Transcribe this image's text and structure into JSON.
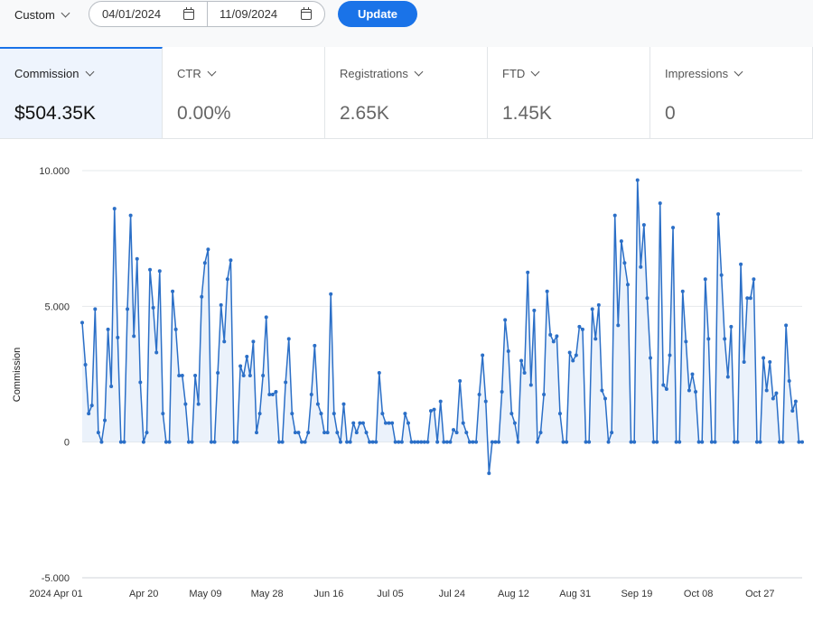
{
  "date_range": {
    "preset": "Custom",
    "start": "04/01/2024",
    "end": "11/09/2024",
    "start_icon": "calendar-icon",
    "end_icon": "calendar-icon"
  },
  "update_label": "Update",
  "metrics": [
    {
      "label": "Commission",
      "value": "$504.35K",
      "active": true
    },
    {
      "label": "CTR",
      "value": "0.00%",
      "active": false
    },
    {
      "label": "Registrations",
      "value": "2.65K",
      "active": false
    },
    {
      "label": "FTD",
      "value": "1.45K",
      "active": false
    },
    {
      "label": "Impressions",
      "value": "0",
      "active": false
    }
  ],
  "colors": {
    "accent": "#1a73e8",
    "line": "#2b6fc7",
    "area": "#dbe8f7"
  },
  "chart_data": {
    "type": "area",
    "ylabel": "Commission",
    "xlabel": "",
    "ylim": [
      -5,
      10
    ],
    "yticks": [
      10,
      5,
      0,
      -5
    ],
    "ytick_labels": [
      "10.000",
      "5.000",
      "0",
      "-5.000"
    ],
    "x_start": "2024-04-01",
    "x_end": "2024-11-09",
    "xtick_labels": [
      {
        "label": "2024 Apr 01",
        "date": "2024-04-01"
      },
      {
        "label": "Apr 20",
        "date": "2024-04-20"
      },
      {
        "label": "May 09",
        "date": "2024-05-09"
      },
      {
        "label": "May 28",
        "date": "2024-05-28"
      },
      {
        "label": "Jun 16",
        "date": "2024-06-16"
      },
      {
        "label": "Jul 05",
        "date": "2024-07-05"
      },
      {
        "label": "Jul 24",
        "date": "2024-07-24"
      },
      {
        "label": "Aug 12",
        "date": "2024-08-12"
      },
      {
        "label": "Aug 31",
        "date": "2024-08-31"
      },
      {
        "label": "Sep 19",
        "date": "2024-09-19"
      },
      {
        "label": "Oct 08",
        "date": "2024-10-08"
      },
      {
        "label": "Oct 27",
        "date": "2024-10-27"
      }
    ],
    "series": [
      {
        "values": [
          4.4,
          2.85,
          1.05,
          1.35,
          4.9,
          0.35,
          0,
          0.8,
          4.15,
          2.05,
          8.6,
          3.85,
          0,
          0,
          4.9,
          8.35,
          3.9,
          6.75,
          2.2,
          0,
          0.35,
          6.35,
          4.95,
          3.3,
          6.3,
          1.05,
          0,
          0,
          5.55,
          4.15,
          2.45,
          2.45,
          1.4,
          0,
          0,
          2.45,
          1.4,
          5.35,
          6.6,
          7.1,
          0,
          0,
          2.55,
          5.05,
          3.7,
          6.0,
          6.7,
          0,
          0,
          2.8,
          2.45,
          3.15,
          2.45,
          3.7,
          0.35,
          1.05,
          2.45,
          4.6,
          1.75,
          1.75,
          1.85,
          0,
          0,
          2.2,
          3.8,
          1.05,
          0.35,
          0.35,
          0,
          0,
          0.35,
          1.75,
          3.55,
          1.4,
          1.05,
          0.35,
          0.35,
          5.45,
          1.05,
          0.35,
          0,
          1.4,
          0,
          0,
          0.7,
          0.35,
          0.7,
          0.7,
          0.35,
          0,
          0,
          0,
          2.55,
          1.05,
          0.7,
          0.7,
          0.7,
          0,
          0,
          0,
          1.05,
          0.7,
          0,
          0,
          0,
          0,
          0,
          0,
          1.15,
          1.2,
          0,
          1.5,
          0,
          0,
          0,
          0.45,
          0.35,
          2.25,
          0.7,
          0.35,
          0,
          0,
          0,
          1.75,
          3.2,
          1.5,
          -1.15,
          0,
          0,
          0,
          1.85,
          4.5,
          3.35,
          1.05,
          0.7,
          0,
          3.0,
          2.55,
          6.25,
          2.1,
          4.85,
          0,
          0.35,
          1.75,
          5.55,
          3.95,
          3.7,
          3.9,
          1.05,
          0,
          0,
          3.3,
          3.0,
          3.2,
          4.25,
          4.15,
          0,
          0,
          4.9,
          3.8,
          5.05,
          1.9,
          1.6,
          0,
          0.35,
          8.35,
          4.3,
          7.4,
          6.6,
          5.8,
          0,
          0,
          9.65,
          6.45,
          8.0,
          5.3,
          3.1,
          0,
          0,
          8.8,
          2.1,
          1.95,
          3.2,
          7.9,
          0,
          0,
          5.55,
          3.7,
          1.9,
          2.5,
          1.85,
          0,
          0,
          6.0,
          3.8,
          0,
          0,
          8.4,
          6.15,
          3.8,
          2.4,
          4.25,
          0,
          0,
          6.55,
          2.95,
          5.3,
          5.3,
          6.0,
          0,
          0,
          3.1,
          1.9,
          2.95,
          1.6,
          1.8,
          0,
          0,
          4.3,
          2.25,
          1.15,
          1.5,
          0,
          0
        ]
      }
    ]
  }
}
